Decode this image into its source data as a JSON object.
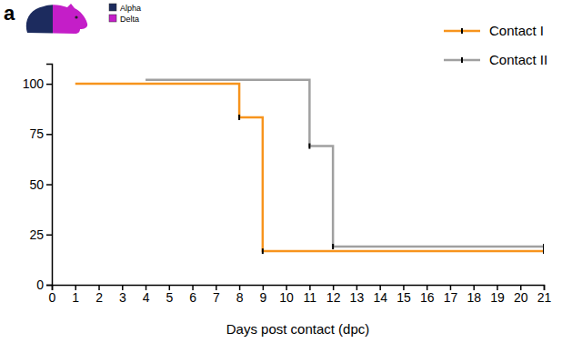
{
  "chart_data": {
    "type": "line",
    "panel_label": "a",
    "icon_legend": [
      {
        "name": "Alpha",
        "color": "#1c2b5e"
      },
      {
        "name": "Delta",
        "color": "#c41ec8"
      }
    ],
    "x_label": "Days post contact (dpc)",
    "series": [
      {
        "name": "Contact I",
        "color": "#f7941d",
        "line_style": "step",
        "marker": "tick",
        "x": [
          1,
          8,
          9,
          21
        ],
        "values": [
          100,
          83.3,
          16.7,
          16.7
        ]
      },
      {
        "name": "Contact II",
        "color": "#a0a0a0",
        "line_style": "step",
        "marker": "tick",
        "x": [
          4,
          11,
          12,
          21
        ],
        "values": [
          102,
          69,
          19,
          19
        ]
      }
    ],
    "xlim": [
      0,
      21
    ],
    "xticks": [
      0,
      1,
      2,
      3,
      4,
      5,
      6,
      7,
      8,
      9,
      10,
      11,
      12,
      13,
      14,
      15,
      16,
      17,
      18,
      19,
      20,
      21
    ],
    "ylim": [
      0,
      110
    ],
    "yticks": [
      0,
      25,
      50,
      75,
      100
    ],
    "legend": "top-right",
    "grid": false
  }
}
